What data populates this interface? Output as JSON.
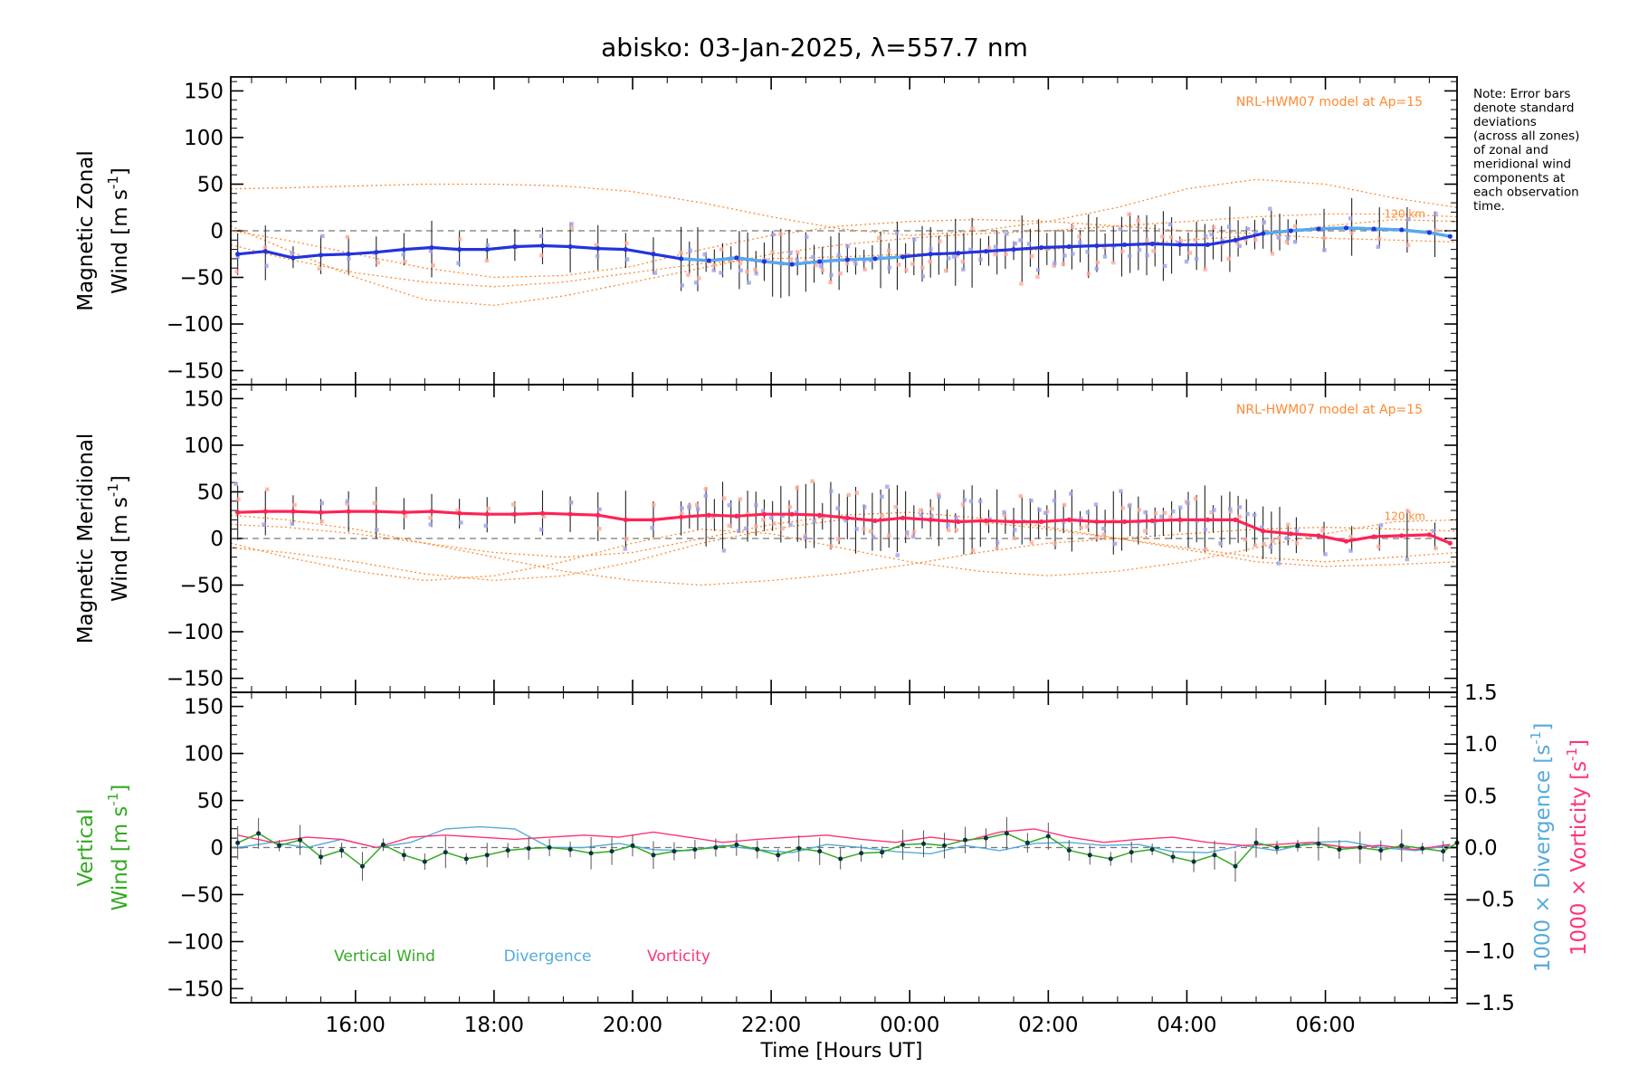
{
  "figure": {
    "title": "abisko: 03-Jan-2025, λ=557.7 nm",
    "xlabel": "Time [Hours UT]",
    "note_lines": [
      "Note: Error bars",
      "denote standard",
      "deviations",
      "(across all zones)",
      "of zonal and",
      "meridional wind",
      "components at",
      "each observation",
      "time."
    ],
    "colors": {
      "zonal": "#2233dd",
      "zonal_light": "#55aaee",
      "meridional": "#ff2255",
      "model": "#ff8a33",
      "zone_a": "#9aa0ee",
      "zone_b": "#ffaa99",
      "vertical": "#33aa22",
      "divergence": "#55aadd",
      "vorticity": "#ff3377",
      "dashed": "#777777",
      "errorbar": "#222222"
    }
  },
  "chart_data": [
    {
      "type": "line",
      "panel": "zonal",
      "ylabel": [
        "Magnetic Zonal",
        "Wind [m s",
        "-1",
        "]"
      ],
      "yticks": [
        "150",
        "100",
        "50",
        "0",
        "−50",
        "−100",
        "−150"
      ],
      "ylim": [
        -165,
        165
      ],
      "xlim": [
        14.2,
        31.9
      ],
      "xticks": [
        "16:00",
        "18:00",
        "20:00",
        "22:00",
        "00:00",
        "02:00",
        "04:00",
        "06:00"
      ],
      "annotation": "NRL-HWM07 model at Ap=15",
      "model_label": "120 km",
      "series": [
        {
          "role": "observed",
          "x": [
            14.3,
            14.7,
            15.1,
            15.5,
            15.9,
            16.3,
            16.7,
            17.1,
            17.5,
            17.9,
            18.3,
            18.7,
            19.1,
            19.5,
            19.9,
            20.3,
            20.7,
            21.1,
            21.5,
            21.9,
            22.3,
            22.7,
            23.1,
            23.5,
            23.9,
            24.3,
            24.7,
            25.1,
            25.5,
            25.9,
            26.3,
            26.7,
            27.1,
            27.5,
            27.9,
            28.3,
            28.7,
            29.1,
            29.5,
            29.9,
            30.3,
            30.7,
            31.1,
            31.5,
            31.8
          ],
          "y": [
            -25,
            -22,
            -29,
            -26,
            -25,
            -23,
            -20,
            -18,
            -20,
            -20,
            -17,
            -16,
            -17,
            -19,
            -20,
            -25,
            -30,
            -32,
            -29,
            -33,
            -36,
            -33,
            -31,
            -30,
            -28,
            -25,
            -24,
            -22,
            -20,
            -18,
            -17,
            -16,
            -15,
            -14,
            -15,
            -15,
            -10,
            -3,
            0,
            2,
            3,
            2,
            1,
            -2,
            -6
          ]
        },
        {
          "role": "model",
          "x": [
            14.2,
            15,
            16,
            17,
            18,
            19,
            20,
            21,
            22,
            23,
            24,
            25,
            26,
            27,
            28,
            29,
            30,
            31,
            31.9
          ],
          "y": [
            45,
            46,
            48,
            50,
            50,
            48,
            42,
            30,
            15,
            2,
            -5,
            0,
            10,
            25,
            45,
            55,
            50,
            35,
            25
          ]
        },
        {
          "role": "model",
          "x": [
            14.2,
            15,
            16,
            17,
            18,
            19,
            20,
            21,
            22,
            23,
            24,
            25,
            26,
            27,
            28,
            29,
            30,
            31,
            31.9
          ],
          "y": [
            5,
            -20,
            -50,
            -74,
            -80,
            -70,
            -55,
            -40,
            -25,
            -15,
            -8,
            -3,
            0,
            5,
            10,
            15,
            18,
            18,
            15
          ]
        },
        {
          "role": "model",
          "x": [
            14.2,
            15,
            16,
            17,
            18,
            19,
            20,
            21,
            22,
            23,
            24,
            25,
            26,
            27,
            28,
            29,
            30,
            31,
            31.9
          ],
          "y": [
            -15,
            -30,
            -45,
            -55,
            -60,
            -55,
            -45,
            -35,
            -30,
            -28,
            -25,
            -22,
            -20,
            -15,
            -10,
            -5,
            5,
            12,
            10
          ]
        },
        {
          "role": "model",
          "x": [
            14.2,
            15,
            16,
            17,
            18,
            19,
            20,
            21,
            22,
            23,
            24,
            25,
            26,
            27,
            28,
            29,
            30,
            31,
            31.9
          ],
          "y": [
            0,
            -10,
            -25,
            -40,
            -50,
            -48,
            -38,
            -20,
            -5,
            5,
            10,
            12,
            10,
            5,
            0,
            -3,
            -8,
            -10,
            -12
          ]
        }
      ]
    },
    {
      "type": "line",
      "panel": "meridional",
      "ylabel": [
        "Magnetic Meridional",
        "Wind [m s",
        "-1",
        "]"
      ],
      "yticks": [
        "150",
        "100",
        "50",
        "0",
        "−50",
        "−100",
        "−150"
      ],
      "ylim": [
        -165,
        165
      ],
      "xlim": [
        14.2,
        31.9
      ],
      "annotation": "NRL-HWM07 model at Ap=15",
      "model_label": "120 km",
      "series": [
        {
          "role": "observed",
          "x": [
            14.3,
            14.7,
            15.1,
            15.5,
            15.9,
            16.3,
            16.7,
            17.1,
            17.5,
            17.9,
            18.3,
            18.7,
            19.1,
            19.5,
            19.9,
            20.3,
            20.7,
            21.1,
            21.5,
            21.9,
            22.3,
            22.7,
            23.1,
            23.5,
            23.9,
            24.3,
            24.7,
            25.1,
            25.5,
            25.9,
            26.3,
            26.7,
            27.1,
            27.5,
            27.9,
            28.3,
            28.7,
            29.1,
            29.5,
            29.9,
            30.3,
            30.7,
            31.1,
            31.5,
            31.8
          ],
          "y": [
            28,
            29,
            29,
            28,
            29,
            29,
            28,
            29,
            27,
            26,
            26,
            27,
            26,
            25,
            20,
            20,
            23,
            25,
            24,
            26,
            26,
            25,
            22,
            19,
            22,
            20,
            18,
            19,
            18,
            18,
            20,
            18,
            18,
            19,
            20,
            20,
            20,
            8,
            5,
            3,
            -3,
            2,
            3,
            4,
            -5
          ]
        },
        {
          "role": "model",
          "x": [
            14.2,
            15,
            16,
            17,
            18,
            19,
            20,
            21,
            22,
            23,
            24,
            25,
            26,
            27,
            28,
            29,
            30,
            31,
            31.9
          ],
          "y": [
            -5,
            -20,
            -35,
            -45,
            -40,
            -25,
            -5,
            10,
            5,
            -10,
            -25,
            -35,
            -40,
            -35,
            -25,
            -10,
            5,
            18,
            20
          ]
        },
        {
          "role": "model",
          "x": [
            14.2,
            15,
            16,
            17,
            18,
            19,
            20,
            21,
            22,
            23,
            24,
            25,
            26,
            27,
            28,
            29,
            30,
            31,
            31.9
          ],
          "y": [
            -10,
            -15,
            -25,
            -38,
            -45,
            -40,
            -25,
            -5,
            10,
            20,
            22,
            18,
            10,
            0,
            -10,
            -20,
            -25,
            -20,
            -15
          ]
        },
        {
          "role": "model",
          "x": [
            14.2,
            15,
            16,
            17,
            18,
            19,
            20,
            21,
            22,
            23,
            24,
            25,
            26,
            27,
            28,
            29,
            30,
            31,
            31.9
          ],
          "y": [
            25,
            20,
            10,
            -5,
            -20,
            -35,
            -45,
            -50,
            -45,
            -38,
            -28,
            -15,
            -5,
            0,
            5,
            10,
            12,
            10,
            8
          ]
        },
        {
          "role": "model",
          "x": [
            14.2,
            15,
            16,
            17,
            18,
            19,
            20,
            21,
            22,
            23,
            24,
            25,
            26,
            27,
            28,
            29,
            30,
            31,
            31.9
          ],
          "y": [
            15,
            12,
            5,
            -5,
            -15,
            -20,
            -15,
            0,
            15,
            25,
            28,
            22,
            12,
            0,
            -12,
            -25,
            -30,
            -28,
            -25
          ]
        }
      ]
    },
    {
      "type": "line",
      "panel": "vertical",
      "ylabel": [
        "Vertical",
        "Wind [m s",
        "-1",
        "]"
      ],
      "ylabel_right_div": [
        "1000 × Divergence [s",
        "-1",
        "]"
      ],
      "ylabel_right_vort": [
        "1000 × Vorticity [s",
        "-1",
        "]"
      ],
      "yticks": [
        "150",
        "100",
        "50",
        "0",
        "−50",
        "−100",
        "−150"
      ],
      "yticks_right": [
        "1.5",
        "1.0",
        "0.5",
        "0.0",
        "−0.5",
        "−1.0",
        "−1.5"
      ],
      "ylim": [
        -165,
        165
      ],
      "y2lim": [
        -1.5,
        1.5
      ],
      "xlim": [
        14.2,
        31.9
      ],
      "xticks": [
        "16:00",
        "18:00",
        "20:00",
        "22:00",
        "00:00",
        "02:00",
        "04:00",
        "06:00"
      ],
      "legend": [
        "Vertical Wind",
        "Divergence",
        "Vorticity"
      ],
      "series": [
        {
          "name": "Vertical Wind",
          "x": [
            14.3,
            14.6,
            14.9,
            15.2,
            15.5,
            15.8,
            16.1,
            16.4,
            16.7,
            17.0,
            17.3,
            17.6,
            17.9,
            18.2,
            18.5,
            18.8,
            19.1,
            19.4,
            19.7,
            20.0,
            20.3,
            20.6,
            20.9,
            21.2,
            21.5,
            21.8,
            22.1,
            22.4,
            22.7,
            23.0,
            23.3,
            23.6,
            23.9,
            24.2,
            24.5,
            24.8,
            25.1,
            25.4,
            25.7,
            26.0,
            26.3,
            26.6,
            26.9,
            27.2,
            27.5,
            27.8,
            28.1,
            28.4,
            28.7,
            29.0,
            29.3,
            29.6,
            29.9,
            30.2,
            30.5,
            30.8,
            31.1,
            31.4,
            31.7,
            31.9
          ],
          "y": [
            5,
            15,
            2,
            8,
            -10,
            -3,
            -20,
            3,
            -8,
            -15,
            -5,
            -12,
            -8,
            -3,
            -1,
            0,
            -2,
            -6,
            -4,
            2,
            -8,
            -4,
            -2,
            0,
            3,
            -2,
            -8,
            -1,
            -4,
            -12,
            -6,
            -5,
            3,
            4,
            2,
            8,
            10,
            15,
            5,
            12,
            -3,
            -8,
            -12,
            -5,
            -2,
            -10,
            -15,
            -8,
            -20,
            5,
            0,
            2,
            4,
            -2,
            0,
            -3,
            2,
            -1,
            -4,
            5
          ]
        },
        {
          "name": "Divergence",
          "x": [
            14.3,
            14.8,
            15.3,
            15.8,
            16.3,
            16.8,
            17.3,
            17.8,
            18.3,
            18.8,
            19.3,
            19.8,
            20.3,
            20.8,
            21.3,
            21.8,
            22.3,
            22.8,
            23.3,
            23.8,
            24.3,
            24.8,
            25.3,
            25.8,
            26.3,
            26.8,
            27.3,
            27.8,
            28.3,
            28.8,
            29.3,
            29.8,
            30.3,
            30.8,
            31.3,
            31.8
          ],
          "y": [
            0.0,
            0.05,
            0.0,
            0.08,
            0.0,
            0.05,
            0.18,
            0.2,
            0.18,
            0.0,
            0.0,
            0.04,
            -0.02,
            -0.03,
            0.02,
            -0.02,
            -0.05,
            0.03,
            0.0,
            -0.04,
            -0.06,
            0.02,
            -0.03,
            0.04,
            0.05,
            0.02,
            0.03,
            -0.04,
            -0.05,
            0.02,
            -0.03,
            0.05,
            0.06,
            0.0,
            -0.03,
            0.02
          ]
        },
        {
          "name": "Vorticity",
          "x": [
            14.3,
            14.8,
            15.3,
            15.8,
            16.3,
            16.8,
            17.3,
            17.8,
            18.3,
            18.8,
            19.3,
            19.8,
            20.3,
            20.8,
            21.3,
            21.8,
            22.3,
            22.8,
            23.3,
            23.8,
            24.3,
            24.8,
            25.3,
            25.8,
            26.3,
            26.8,
            27.3,
            27.8,
            28.3,
            28.8,
            29.3,
            29.8,
            30.3,
            30.8,
            31.3,
            31.8
          ],
          "y": [
            0.12,
            0.05,
            0.1,
            0.08,
            0.0,
            0.1,
            0.12,
            0.1,
            0.08,
            0.1,
            0.12,
            0.1,
            0.15,
            0.1,
            0.05,
            0.08,
            0.1,
            0.12,
            0.08,
            0.05,
            0.1,
            0.06,
            0.15,
            0.18,
            0.1,
            0.05,
            0.08,
            0.1,
            0.05,
            0.02,
            0.03,
            0.05,
            0.0,
            0.02,
            -0.02,
            0.03
          ]
        }
      ]
    }
  ]
}
